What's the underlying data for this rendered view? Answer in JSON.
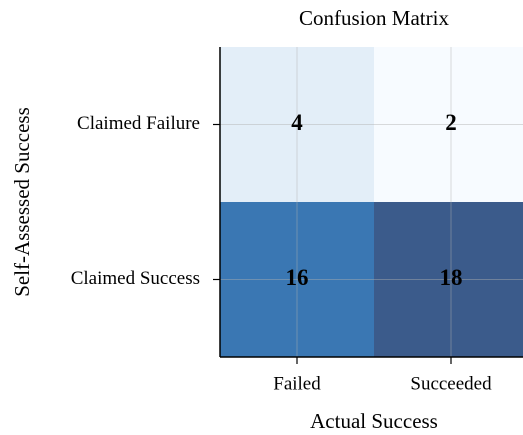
{
  "chart_data": {
    "type": "heatmap",
    "title": "Confusion Matrix",
    "xlabel": "Actual Success",
    "ylabel": "Self-Assessed Success",
    "x_categories": [
      "Failed",
      "Succeeded"
    ],
    "y_categories": [
      "Claimed Failure",
      "Claimed Success"
    ],
    "values": [
      [
        4,
        2
      ],
      [
        16,
        18
      ]
    ],
    "colors": [
      [
        "#e3eef8",
        "#f7fbff"
      ],
      [
        "#3a77b3",
        "#3b5b8b"
      ]
    ],
    "grid": true
  }
}
